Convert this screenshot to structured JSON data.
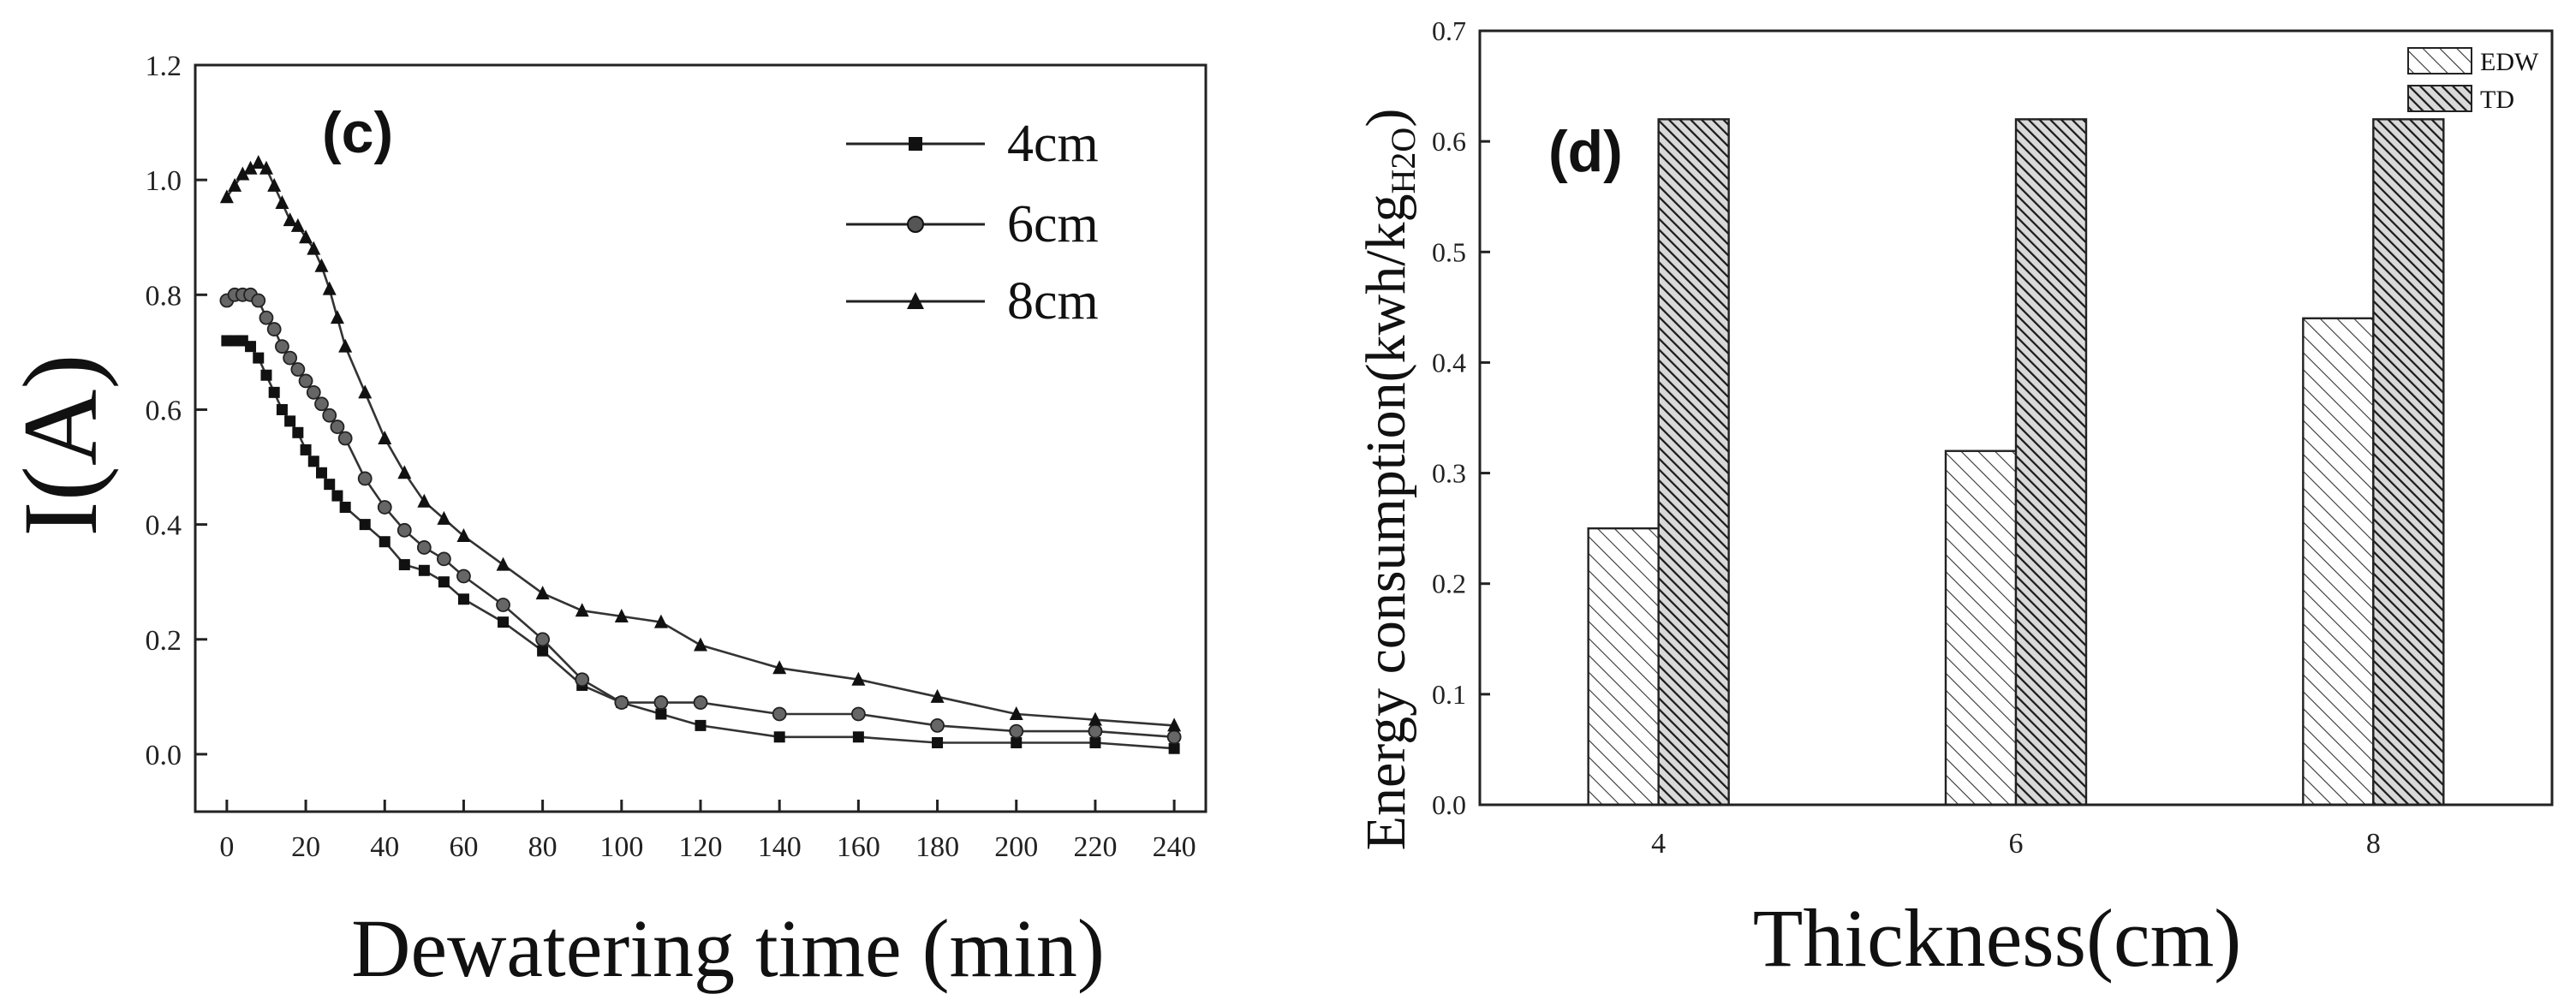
{
  "chart_data": [
    {
      "type": "line",
      "panel_label": "(c)",
      "xlabel": "Dewatering time (min)",
      "ylabel": "I(A)",
      "xlim": [
        -8,
        248
      ],
      "ylim": [
        -0.1,
        1.2
      ],
      "xticks": [
        0,
        20,
        40,
        60,
        80,
        100,
        120,
        140,
        160,
        180,
        200,
        220,
        240
      ],
      "yticks": [
        0.0,
        0.2,
        0.4,
        0.6,
        0.8,
        1.0,
        1.2
      ],
      "ytick_labels": [
        "0.0",
        "0.2",
        "0.4",
        "0.6",
        "0.8",
        "1.0",
        "1.2"
      ],
      "legend_position": "top-right",
      "series": [
        {
          "name": "4cm",
          "marker": "square",
          "x": [
            0,
            2,
            4,
            6,
            8,
            10,
            12,
            14,
            16,
            18,
            20,
            22,
            24,
            26,
            28,
            30,
            35,
            40,
            45,
            50,
            55,
            60,
            70,
            80,
            90,
            100,
            110,
            120,
            140,
            160,
            180,
            200,
            220,
            240
          ],
          "y": [
            0.72,
            0.72,
            0.72,
            0.71,
            0.69,
            0.66,
            0.63,
            0.6,
            0.58,
            0.56,
            0.53,
            0.51,
            0.49,
            0.47,
            0.45,
            0.43,
            0.4,
            0.37,
            0.33,
            0.32,
            0.3,
            0.27,
            0.23,
            0.18,
            0.12,
            0.09,
            0.07,
            0.05,
            0.03,
            0.03,
            0.02,
            0.02,
            0.02,
            0.01
          ]
        },
        {
          "name": "6cm",
          "marker": "circle",
          "x": [
            0,
            2,
            4,
            6,
            8,
            10,
            12,
            14,
            16,
            18,
            20,
            22,
            24,
            26,
            28,
            30,
            35,
            40,
            45,
            50,
            55,
            60,
            70,
            80,
            90,
            100,
            110,
            120,
            140,
            160,
            180,
            200,
            220,
            240
          ],
          "y": [
            0.79,
            0.8,
            0.8,
            0.8,
            0.79,
            0.76,
            0.74,
            0.71,
            0.69,
            0.67,
            0.65,
            0.63,
            0.61,
            0.59,
            0.57,
            0.55,
            0.48,
            0.43,
            0.39,
            0.36,
            0.34,
            0.31,
            0.26,
            0.2,
            0.13,
            0.09,
            0.09,
            0.09,
            0.07,
            0.07,
            0.05,
            0.04,
            0.04,
            0.03
          ]
        },
        {
          "name": "8cm",
          "marker": "triangle",
          "x": [
            0,
            2,
            4,
            6,
            8,
            10,
            12,
            14,
            16,
            18,
            20,
            22,
            24,
            26,
            28,
            30,
            35,
            40,
            45,
            50,
            55,
            60,
            70,
            80,
            90,
            100,
            110,
            120,
            140,
            160,
            180,
            200,
            220,
            240
          ],
          "y": [
            0.97,
            0.99,
            1.01,
            1.02,
            1.03,
            1.02,
            0.99,
            0.96,
            0.93,
            0.92,
            0.9,
            0.88,
            0.85,
            0.81,
            0.76,
            0.71,
            0.63,
            0.55,
            0.49,
            0.44,
            0.41,
            0.38,
            0.33,
            0.28,
            0.25,
            0.24,
            0.23,
            0.19,
            0.15,
            0.13,
            0.1,
            0.07,
            0.06,
            0.05
          ]
        }
      ]
    },
    {
      "type": "bar",
      "panel_label": "(d)",
      "xlabel": "Thickness(cm)",
      "ylabel_main": "Energy consumption(kwh/kg",
      "ylabel_sub": "H2O",
      "ylabel_close": ")",
      "categories": [
        "4",
        "6",
        "8"
      ],
      "ylim": [
        0.0,
        0.7
      ],
      "yticks": [
        0.0,
        0.1,
        0.2,
        0.3,
        0.4,
        0.5,
        0.6,
        0.7
      ],
      "ytick_labels": [
        "0.0",
        "0.1",
        "0.2",
        "0.3",
        "0.4",
        "0.5",
        "0.6",
        "0.7"
      ],
      "legend_position": "top-right",
      "series": [
        {
          "name": "EDW",
          "pattern": "light-hatch",
          "values": [
            0.25,
            0.32,
            0.44
          ]
        },
        {
          "name": "TD",
          "pattern": "dense-hatch",
          "values": [
            0.62,
            0.62,
            0.62
          ]
        }
      ]
    }
  ]
}
